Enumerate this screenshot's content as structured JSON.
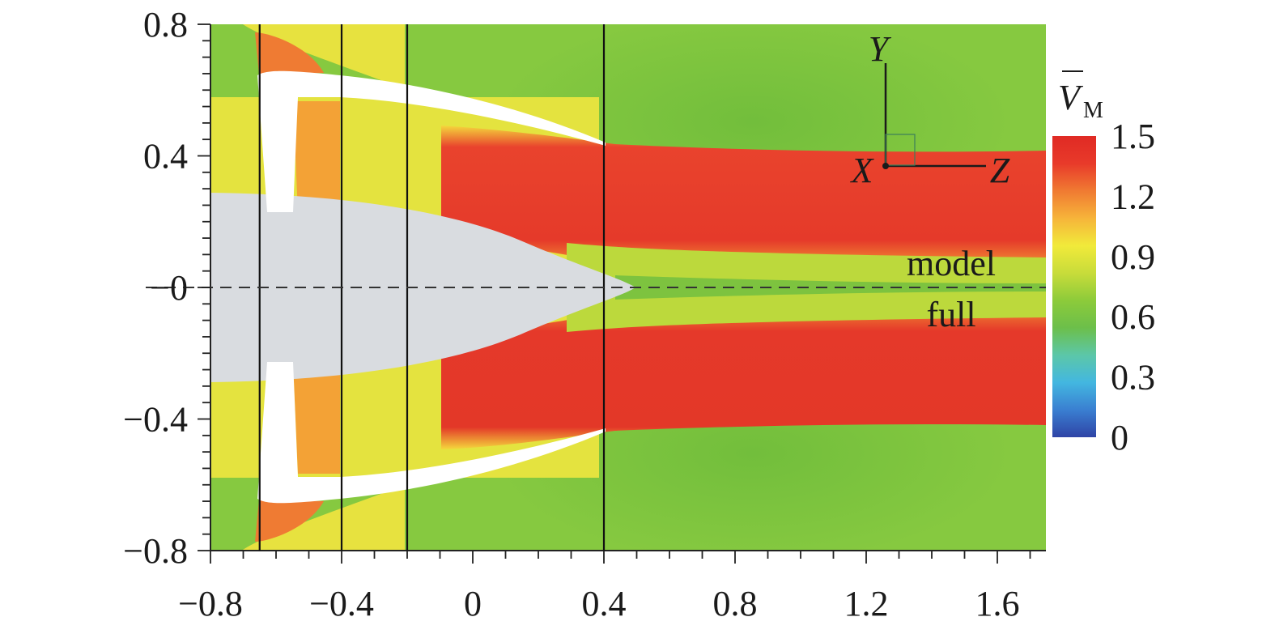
{
  "chart_data": {
    "type": "heatmap",
    "title": "",
    "xlabel": "",
    "ylabel": "",
    "xlim": [
      -0.8,
      1.75
    ],
    "ylim": [
      -0.8,
      0.8
    ],
    "x_ticks": [
      "−0.8",
      "−0.4",
      "0",
      "0.4",
      "0.8",
      "1.2",
      "1.6"
    ],
    "x_tick_values": [
      -0.8,
      -0.4,
      0,
      0.4,
      0.8,
      1.2,
      1.6
    ],
    "y_ticks": [
      "0.8",
      "0.4",
      "−0",
      "−0.4",
      "−0.8"
    ],
    "y_tick_values": [
      0.8,
      0.4,
      0,
      -0.4,
      -0.8
    ],
    "vertical_lines_x": [
      -0.65,
      -0.4,
      -0.2,
      0.4
    ],
    "symmetry_line_y": 0,
    "half_labels": {
      "upper": "model",
      "lower": "full"
    },
    "axes_triad": {
      "vertical": "Y",
      "origin": "X",
      "horizontal": "Z"
    },
    "colorbar": {
      "label_base": "V",
      "label_sub": "M",
      "tick_labels": [
        "1.5",
        "1.2",
        "0.9",
        "0.6",
        "0.3",
        "0"
      ],
      "tick_values": [
        1.5,
        1.2,
        0.9,
        0.6,
        0.3,
        0
      ],
      "range": [
        0,
        1.5
      ],
      "colors": [
        "#2f44a6",
        "#3a7fd1",
        "#43b7e0",
        "#5cc7a8",
        "#6cbf4a",
        "#8dcb3a",
        "#c8dc3a",
        "#f1ea3a",
        "#f6b43a",
        "#f07a32",
        "#e83a2a",
        "#e02a24"
      ]
    },
    "colors": {
      "freestream": "#86c940",
      "outer_flow": "#7ec53e",
      "jet_core": "#e8402c",
      "jet_edge": "#f5a335",
      "inlet": "#eae53f",
      "body": "#d9dce0",
      "nacelle": "#ffffff"
    }
  }
}
